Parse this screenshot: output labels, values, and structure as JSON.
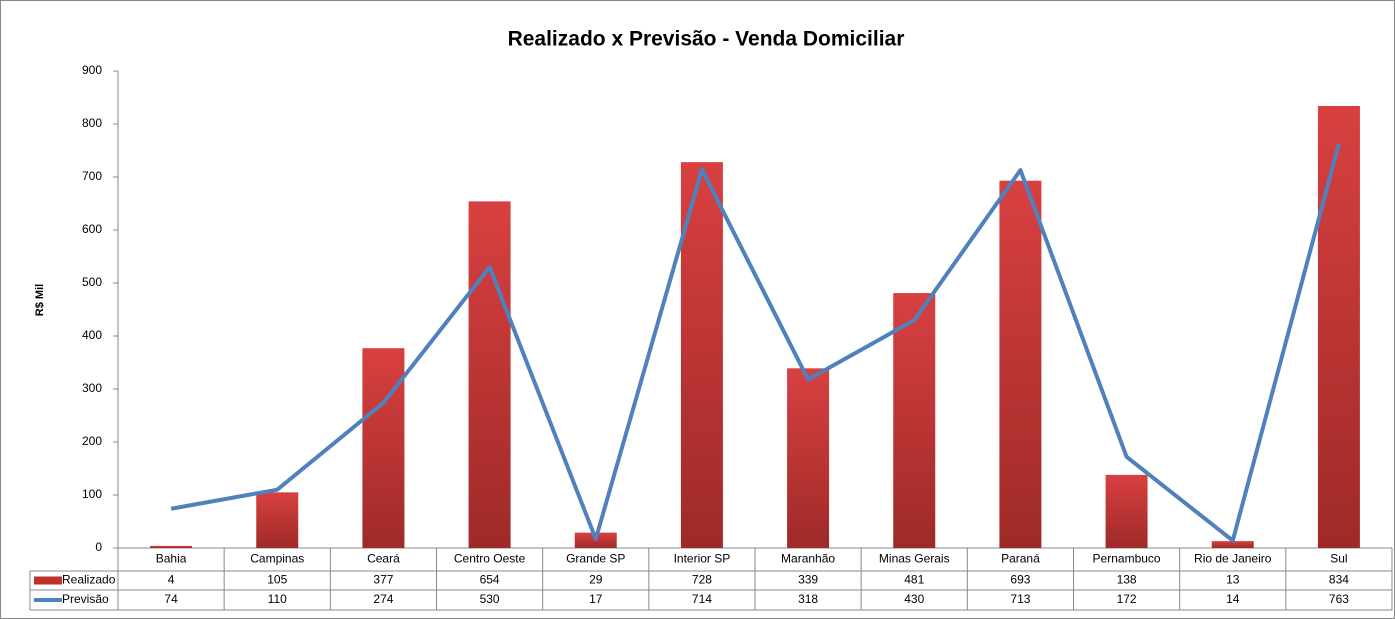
{
  "chart_data": {
    "type": "bar_line",
    "title": "Realizado x Previsão - Venda Domiciliar",
    "y_label": "R$ Mil",
    "categories": [
      "Bahia",
      "Campinas",
      "Ceará",
      "Centro Oeste",
      "Grande SP",
      "Interior SP",
      "Maranhão",
      "Minas Gerais",
      "Paraná",
      "Pernambuco",
      "Rio de Janeiro",
      "Sul"
    ],
    "series": [
      {
        "name": "Realizado",
        "type": "bar",
        "color": "#c0302f",
        "values": [
          4,
          105,
          377,
          654,
          29,
          728,
          339,
          481,
          693,
          138,
          13,
          834
        ]
      },
      {
        "name": "Previsão",
        "type": "line",
        "color": "#4f81bd",
        "values": [
          74,
          110,
          274,
          530,
          17,
          714,
          318,
          430,
          713,
          172,
          14,
          763
        ]
      }
    ],
    "ylim": [
      0,
      900
    ],
    "yticks": [
      0,
      100,
      200,
      300,
      400,
      500,
      600,
      700,
      800,
      900
    ],
    "grid": false,
    "data_table": true
  }
}
